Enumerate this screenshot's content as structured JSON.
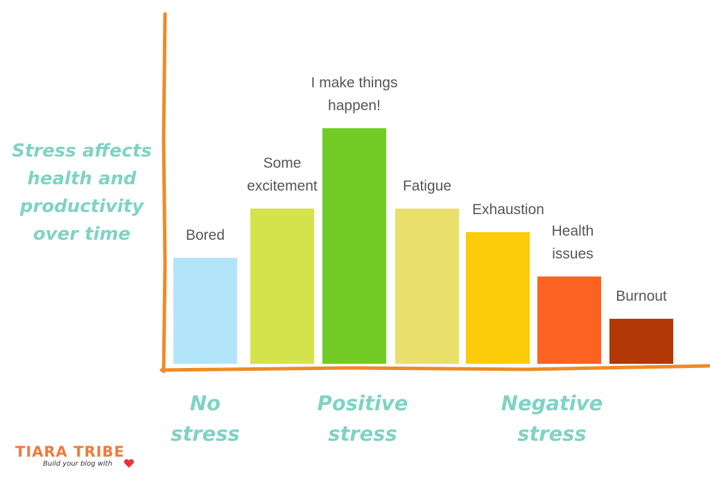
{
  "chart_data": {
    "type": "bar",
    "title": "Stress affects health and productivity over time",
    "categories": [
      "Bored",
      "Some excitement",
      "I make things happen!",
      "Fatigue",
      "Exhaustion",
      "Health issues",
      "Burnout"
    ],
    "values": [
      45,
      66,
      100,
      66,
      56,
      37,
      19
    ],
    "colors": [
      "#b3e5fa",
      "#d4e34c",
      "#73cc26",
      "#e8e06a",
      "#fccc0a",
      "#fc6323",
      "#b33808"
    ],
    "groups": [
      "No stress",
      "Positive stress",
      "Negative stress"
    ]
  },
  "logo": {
    "name": "TIARA TRIBE",
    "tagline": "Build your blog with"
  }
}
